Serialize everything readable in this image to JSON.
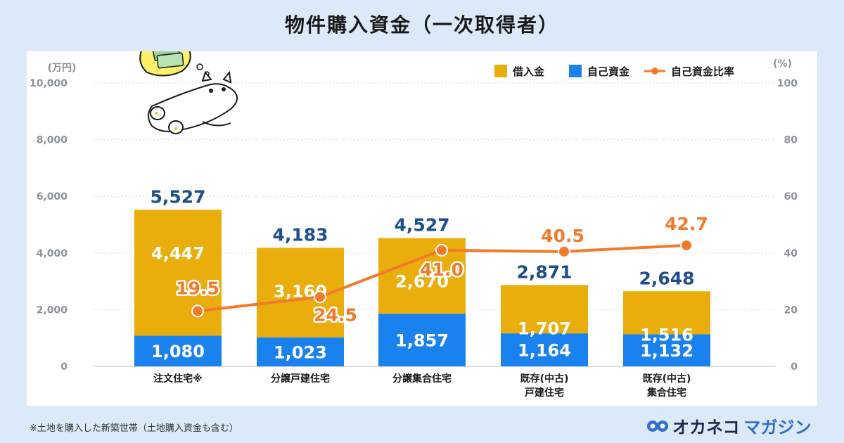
{
  "title": "物件購入資金（一次取得者）",
  "footnote": "※土地を購入した新築世帯（土地購入資金も含む）",
  "logo": {
    "part1": "オカネコ",
    "part2": "マガジン",
    "icon": "owl-eyes-icon"
  },
  "illustration": {
    "icon": "cat-dreaming-of-money-icon"
  },
  "colors": {
    "loan": "#e9ad0c",
    "own": "#1a82ee",
    "ratio": "#f47a2a",
    "total": "#1c4f8c"
  },
  "chart_data": {
    "type": "bar",
    "stacked": true,
    "categories": [
      [
        "注文住宅※"
      ],
      [
        "分譲戸建住宅"
      ],
      [
        "分譲集合住宅"
      ],
      [
        "既存(中古)",
        "戸建住宅"
      ],
      [
        "既存(中古)",
        "集合住宅"
      ]
    ],
    "series": [
      {
        "name": "自己資金",
        "values": [
          1080,
          1023,
          1857,
          1164,
          1132
        ]
      },
      {
        "name": "借入金",
        "values": [
          4447,
          3160,
          2670,
          1707,
          1516
        ]
      }
    ],
    "totals": [
      5527,
      4183,
      4527,
      2871,
      2648
    ],
    "totals_labels": [
      "5,527",
      "4,183",
      "4,527",
      "2,871",
      "2,648"
    ],
    "own_labels": [
      "1,080",
      "1,023",
      "1,857",
      "1,164",
      "1,132"
    ],
    "loan_labels": [
      "4,447",
      "3,160",
      "2,670",
      "1,707",
      "1,516"
    ],
    "line": {
      "name": "自己資金比率",
      "values": [
        19.5,
        24.5,
        41.0,
        40.5,
        42.7
      ],
      "labels": [
        "19.5",
        "24.5",
        "41.0",
        "40.5",
        "42.7"
      ]
    },
    "y_left": {
      "unit": "(万円)",
      "ylim": [
        0,
        10000
      ],
      "ticks": [
        0,
        2000,
        4000,
        6000,
        8000,
        10000
      ],
      "tick_labels": [
        "0",
        "2,000",
        "4,000",
        "6,000",
        "8,000",
        "10,000"
      ]
    },
    "y_right": {
      "unit": "(%)",
      "ylim": [
        0,
        100
      ],
      "ticks": [
        0,
        20,
        40,
        60,
        80,
        100
      ],
      "tick_labels": [
        "0",
        "20",
        "40",
        "60",
        "80",
        "100"
      ]
    },
    "legend": {
      "placement": "top-right",
      "items": [
        "借入金",
        "自己資金",
        "自己資金比率"
      ]
    },
    "grid": true
  }
}
